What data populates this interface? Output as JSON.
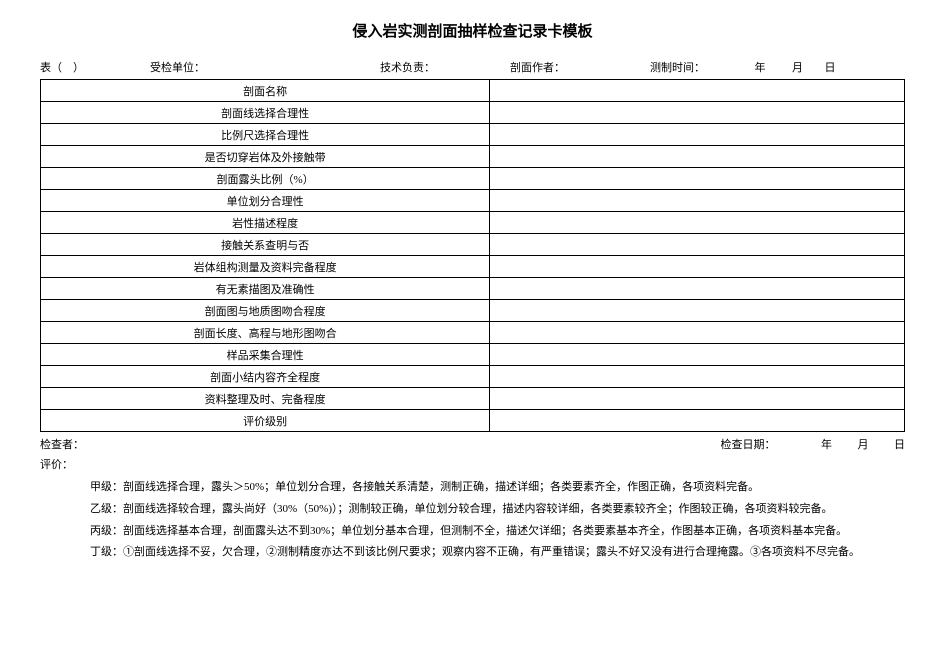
{
  "title": "侵入岩实测剖面抽样检查记录卡模板",
  "header": {
    "table_no_label": "表（　）",
    "inspected_unit_label": "受检单位：",
    "tech_lead_label": "技术负责：",
    "section_author_label": "剖面作者：",
    "survey_time_label": "测制时间：",
    "year_label": "年",
    "month_label": "月",
    "day_label": "日"
  },
  "rows": [
    "剖面名称",
    "剖面线选择合理性",
    "比例尺选择合理性",
    "是否切穿岩体及外接触带",
    "剖面露头比例（%）",
    "单位划分合理性",
    "岩性描述程度",
    "接触关系查明与否",
    "岩体组构测量及资料完备程度",
    "有无素描图及准确性",
    "剖面图与地质图吻合程度",
    "剖面长度、高程与地形图吻合",
    "样品采集合理性",
    "剖面小结内容齐全程度",
    "资料整理及时、完备程度",
    "评价级别"
  ],
  "footer": {
    "inspector_label": "检查者：",
    "inspect_date_label": "检查日期：",
    "year_label": "年",
    "month_label": "月",
    "day_label": "日"
  },
  "eval_label": "评价：",
  "criteria": {
    "a": "甲级：剖面线选择合理，露头＞50%；单位划分合理，各接触关系清楚，测制正确，描述详细；各类要素齐全，作图正确，各项资料完备。",
    "b": "乙级：剖面线选择较合理，露头尚好（30%（50%)）；测制较正确，单位划分较合理，描述内容较详细，各类要素较齐全；作图较正确，各项资料较完备。",
    "c": "丙级：剖面线选择基本合理，剖面露头达不到30%；单位划分基本合理，但测制不全，描述欠详细；各类要素基本齐全，作图基本正确，各项资料基本完备。",
    "d": "丁级：①剖面线选择不妥，欠合理，②测制精度亦达不到该比例尺要求；观察内容不正确，有严重错误；露头不好又没有进行合理掩露。③各项资料不尽完备。"
  }
}
